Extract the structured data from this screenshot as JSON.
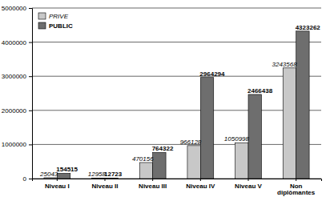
{
  "chart_data": {
    "type": "bar",
    "categories": [
      "Niveau I",
      "Niveau II",
      "Niveau III",
      "Niveau IV",
      "Niveau V",
      "Non diplômantes"
    ],
    "series": [
      {
        "name": "PRIVE",
        "color": "#c8c8c8",
        "values": [
          25043,
          12958,
          470156,
          966128,
          1050998,
          3243568
        ]
      },
      {
        "name": "PUBLIC",
        "color": "#6e6e6e",
        "values": [
          154515,
          12723,
          764322,
          2964294,
          2466438,
          4323262
        ]
      }
    ],
    "ylim": [
      0,
      5000000
    ],
    "yticks": [
      0,
      1000000,
      2000000,
      3000000,
      4000000,
      5000000
    ],
    "grid": true,
    "data_labels": true,
    "legend": "top-left"
  }
}
